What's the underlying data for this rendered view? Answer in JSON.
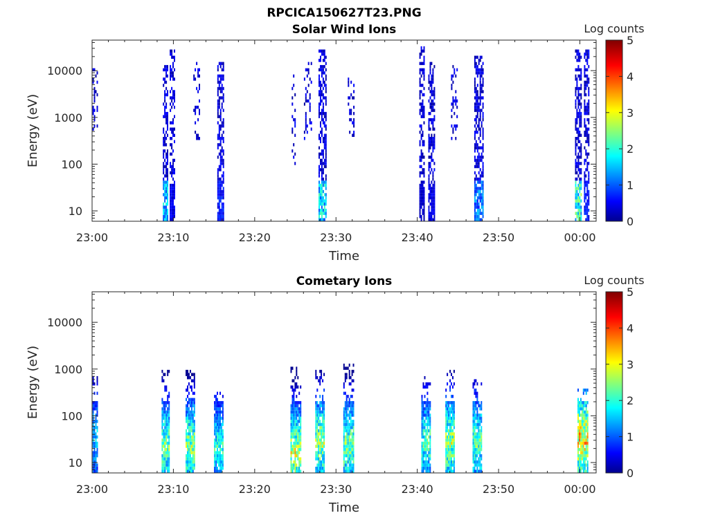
{
  "figure": {
    "title": "RPCICA150627T23.PNG"
  },
  "chart_data": [
    {
      "type": "heatmap",
      "title": "Solar Wind Ions",
      "xlabel": "Time",
      "ylabel": "Energy (eV)",
      "yscale": "log",
      "ylim": [
        6,
        45000
      ],
      "xlim_minutes": [
        0,
        62
      ],
      "x_tick_labels": [
        "23:00",
        "23:10",
        "23:20",
        "23:30",
        "23:40",
        "23:50",
        "00:00"
      ],
      "y_tick_values": [
        10,
        100,
        1000,
        10000
      ],
      "y_tick_labels": [
        "10",
        "100",
        "1000",
        "10000"
      ],
      "colorbar": {
        "label": "Log counts",
        "min": 0,
        "max": 5,
        "tick_labels": [
          "0",
          "1",
          "2",
          "3",
          "4",
          "5"
        ]
      },
      "bursts": [
        {
          "time": "23:00",
          "t": 0.3,
          "width": 0.5,
          "low_e": 500,
          "high_e": 10000,
          "low_band_level": 0,
          "density": 0.35
        },
        {
          "time": "23:09",
          "t": 9.0,
          "width": 0.6,
          "low_e": 6,
          "high_e": 12000,
          "low_band_level": 1.8,
          "density": 0.55
        },
        {
          "time": "23:09.8",
          "t": 9.8,
          "width": 0.5,
          "low_e": 6,
          "high_e": 25000,
          "low_band_level": 0.6,
          "density": 0.5
        },
        {
          "time": "23:12.8",
          "t": 12.8,
          "width": 0.7,
          "low_e": 300,
          "high_e": 15000,
          "low_band_level": 0,
          "density": 0.25
        },
        {
          "time": "23:15.8",
          "t": 15.8,
          "width": 0.8,
          "low_e": 6,
          "high_e": 15000,
          "low_band_level": 0.8,
          "density": 0.6
        },
        {
          "time": "23:24.8",
          "t": 24.8,
          "width": 0.5,
          "low_e": 80,
          "high_e": 8000,
          "low_band_level": 0,
          "density": 0.3
        },
        {
          "time": "23:26.5",
          "t": 26.5,
          "width": 0.9,
          "low_e": 300,
          "high_e": 15000,
          "low_band_level": 0,
          "density": 0.3
        },
        {
          "time": "23:28.3",
          "t": 28.3,
          "width": 0.9,
          "low_e": 6,
          "high_e": 25000,
          "low_band_level": 1.9,
          "density": 0.6
        },
        {
          "time": "23:31.8",
          "t": 31.8,
          "width": 0.7,
          "low_e": 300,
          "high_e": 7000,
          "low_band_level": 0,
          "density": 0.25
        },
        {
          "time": "23:40.5",
          "t": 40.5,
          "width": 0.5,
          "low_e": 6,
          "high_e": 30000,
          "low_band_level": 0.4,
          "density": 0.55
        },
        {
          "time": "23:41.7",
          "t": 41.7,
          "width": 0.7,
          "low_e": 6,
          "high_e": 15000,
          "low_band_level": 0.6,
          "density": 0.55
        },
        {
          "time": "23:44.5",
          "t": 44.5,
          "width": 0.7,
          "low_e": 300,
          "high_e": 12000,
          "low_band_level": 0,
          "density": 0.25
        },
        {
          "time": "23:47.5",
          "t": 47.5,
          "width": 1.0,
          "low_e": 6,
          "high_e": 20000,
          "low_band_level": 1.4,
          "density": 0.6
        },
        {
          "time": "23:59.8",
          "t": 59.8,
          "width": 0.8,
          "low_e": 6,
          "high_e": 25000,
          "low_band_level": 2.3,
          "density": 0.6
        },
        {
          "time": "00:00.8",
          "t": 60.8,
          "width": 0.6,
          "low_e": 6,
          "high_e": 25000,
          "low_band_level": 0.8,
          "density": 0.55
        }
      ]
    },
    {
      "type": "heatmap",
      "title": "Cometary Ions",
      "xlabel": "Time",
      "ylabel": "Energy (eV)",
      "yscale": "log",
      "ylim": [
        6,
        45000
      ],
      "xlim_minutes": [
        0,
        62
      ],
      "x_tick_labels": [
        "23:00",
        "23:10",
        "23:20",
        "23:30",
        "23:40",
        "23:50",
        "00:00"
      ],
      "y_tick_values": [
        10,
        100,
        1000,
        10000
      ],
      "y_tick_labels": [
        "10",
        "100",
        "1000",
        "10000"
      ],
      "colorbar": {
        "label": "Log counts",
        "min": 0,
        "max": 5,
        "tick_labels": [
          "0",
          "1",
          "2",
          "3",
          "4",
          "5"
        ]
      },
      "bursts": [
        {
          "time": "23:00",
          "t": 0.3,
          "width": 0.5,
          "low_e": 6,
          "high_e": 800,
          "peak_e": 30,
          "peak_level": 1.8,
          "density": 0.5
        },
        {
          "time": "23:09",
          "t": 9.0,
          "width": 0.9,
          "low_e": 6,
          "high_e": 900,
          "peak_e": 20,
          "peak_level": 2.7,
          "density": 0.6
        },
        {
          "time": "23:12",
          "t": 12.0,
          "width": 1.0,
          "low_e": 6,
          "high_e": 900,
          "peak_e": 20,
          "peak_level": 2.8,
          "density": 0.6
        },
        {
          "time": "23:15.5",
          "t": 15.5,
          "width": 1.0,
          "low_e": 6,
          "high_e": 300,
          "peak_e": 20,
          "peak_level": 2.2,
          "density": 0.55
        },
        {
          "time": "23:25",
          "t": 25.0,
          "width": 1.2,
          "low_e": 6,
          "high_e": 1000,
          "peak_e": 15,
          "peak_level": 3.1,
          "density": 0.6
        },
        {
          "time": "23:28",
          "t": 28.0,
          "width": 1.1,
          "low_e": 6,
          "high_e": 900,
          "peak_e": 25,
          "peak_level": 2.9,
          "density": 0.6
        },
        {
          "time": "23:31.5",
          "t": 31.5,
          "width": 1.2,
          "low_e": 6,
          "high_e": 1200,
          "peak_e": 20,
          "peak_level": 2.7,
          "density": 0.6
        },
        {
          "time": "23:41",
          "t": 41.0,
          "width": 1.0,
          "low_e": 6,
          "high_e": 700,
          "peak_e": 25,
          "peak_level": 2.4,
          "density": 0.55
        },
        {
          "time": "23:44",
          "t": 44.0,
          "width": 1.1,
          "low_e": 6,
          "high_e": 900,
          "peak_e": 25,
          "peak_level": 2.9,
          "density": 0.6
        },
        {
          "time": "23:47.3",
          "t": 47.3,
          "width": 1.0,
          "low_e": 6,
          "high_e": 600,
          "peak_e": 25,
          "peak_level": 2.5,
          "density": 0.6
        },
        {
          "time": "00:00.3",
          "t": 60.3,
          "width": 1.2,
          "low_e": 6,
          "high_e": 350,
          "peak_e": 30,
          "peak_level": 3.6,
          "density": 0.6
        }
      ]
    }
  ]
}
